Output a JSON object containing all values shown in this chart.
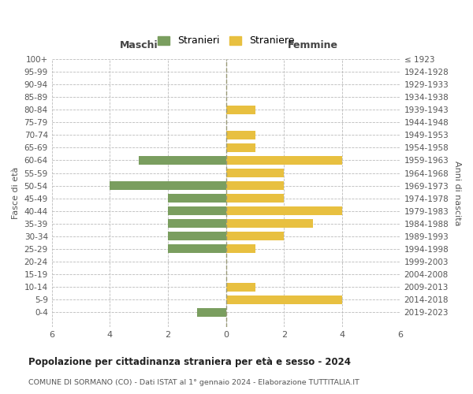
{
  "age_groups": [
    "100+",
    "95-99",
    "90-94",
    "85-89",
    "80-84",
    "75-79",
    "70-74",
    "65-69",
    "60-64",
    "55-59",
    "50-54",
    "45-49",
    "40-44",
    "35-39",
    "30-34",
    "25-29",
    "20-24",
    "15-19",
    "10-14",
    "5-9",
    "0-4"
  ],
  "birth_years": [
    "≤ 1923",
    "1924-1928",
    "1929-1933",
    "1934-1938",
    "1939-1943",
    "1944-1948",
    "1949-1953",
    "1954-1958",
    "1959-1963",
    "1964-1968",
    "1969-1973",
    "1974-1978",
    "1979-1983",
    "1984-1988",
    "1989-1993",
    "1994-1998",
    "1999-2003",
    "2004-2008",
    "2009-2013",
    "2014-2018",
    "2019-2023"
  ],
  "maschi": [
    0,
    0,
    0,
    0,
    0,
    0,
    0,
    0,
    3,
    0,
    4,
    2,
    2,
    2,
    2,
    2,
    0,
    0,
    0,
    0,
    1
  ],
  "femmine": [
    0,
    0,
    0,
    0,
    1,
    0,
    1,
    1,
    4,
    2,
    2,
    2,
    4,
    3,
    2,
    1,
    0,
    0,
    1,
    4,
    0
  ],
  "color_maschi": "#7a9e5f",
  "color_femmine": "#e8c040",
  "title": "Popolazione per cittadinanza straniera per età e sesso - 2024",
  "subtitle": "COMUNE DI SORMANO (CO) - Dati ISTAT al 1° gennaio 2024 - Elaborazione TUTTITALIA.IT",
  "xlabel_left": "Maschi",
  "xlabel_right": "Femmine",
  "ylabel_left": "Fasce di età",
  "ylabel_right": "Anni di nascita",
  "legend_maschi": "Stranieri",
  "legend_femmine": "Straniere",
  "xlim": 6,
  "background_color": "#ffffff",
  "grid_color": "#bbbbbb"
}
